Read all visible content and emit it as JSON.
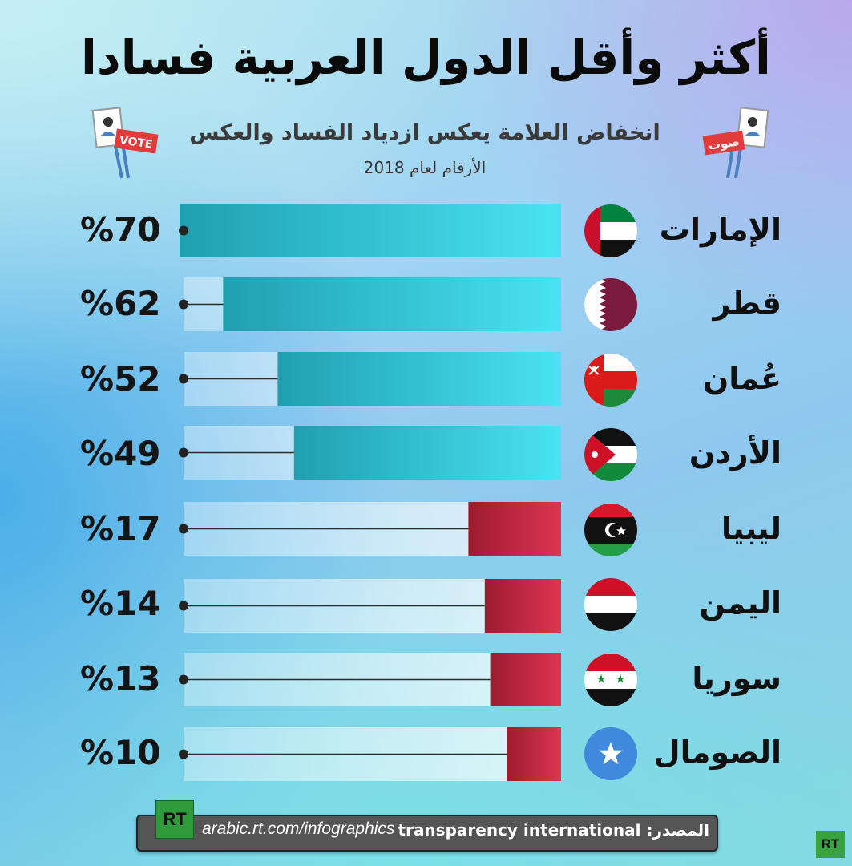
{
  "title": "أكثر وأقل الدول العربية فسادا",
  "subtitle": "انخفاض العلامة يعكس ازدياد الفساد والعكس",
  "year_note": "الأرقام لعام 2018",
  "left_sign_text": "VOTE",
  "right_sign_text": "صوت",
  "colors": {
    "high_bar_light": "#49e3f3",
    "high_bar_dark": "#1fa0b0",
    "low_bar_light": "#dd3550",
    "low_bar_dark": "#9e1b30",
    "track": "#dff3f7"
  },
  "chart_data": {
    "type": "bar",
    "title": "أكثر وأقل الدول العربية فسادا",
    "subtitle": "انخفاض العلامة يعكس ازدياد الفساد والعكس",
    "note": "الأرقام لعام 2018",
    "unit": "%",
    "categories": [
      "الإمارات",
      "قطر",
      "عُمان",
      "الأردن",
      "ليبيا",
      "اليمن",
      "سوريا",
      "الصومال"
    ],
    "values": [
      70,
      62,
      52,
      49,
      17,
      14,
      13,
      10
    ],
    "value_labels": [
      "%70",
      "%62",
      "%52",
      "%49",
      "%17",
      "%14",
      "%13",
      "%10"
    ],
    "flags": [
      "uae-flag-icon",
      "qatar-flag-icon",
      "oman-flag-icon",
      "jordan-flag-icon",
      "libya-flag-icon",
      "yemen-flag-icon",
      "syria-flag-icon",
      "somalia-flag-icon"
    ],
    "xlim": [
      0,
      100
    ],
    "orientation": "horizontal",
    "grid": false
  },
  "footer": {
    "logo": "RT",
    "url": "arabic.rt.com/infographics",
    "source": "المصدر: transparency international",
    "corner_logo": "RT"
  }
}
